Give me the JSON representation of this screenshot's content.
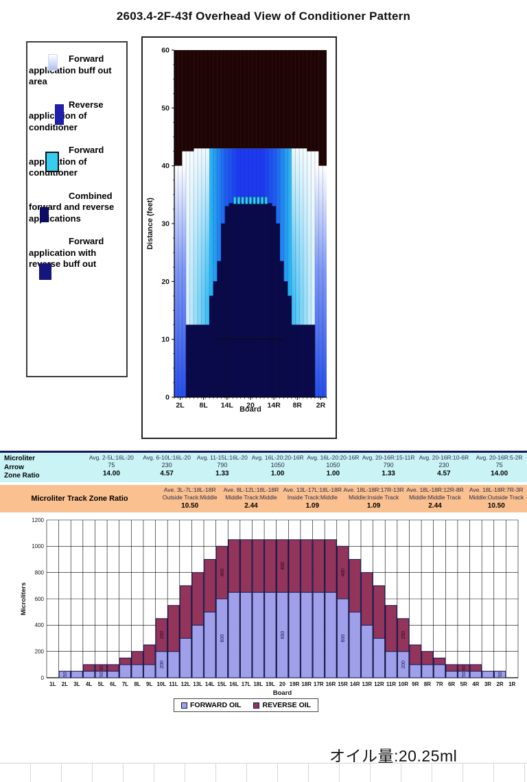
{
  "page": {
    "title": "2603.4-2F-43f Overhead View of Conditioner Pattern",
    "oil_amount": "オイル量:20.25ml"
  },
  "overhead_legend": {
    "items": [
      {
        "name": "forward-buff-out-area",
        "label": "Forward application buff out area",
        "color": "#aebdf2",
        "gradient": true
      },
      {
        "name": "reverse-application",
        "label": "Reverse application of conditioner",
        "color": "#1f1fae"
      },
      {
        "name": "forward-application",
        "label": "Forward application of conditioner",
        "color": "#36cdee"
      },
      {
        "name": "combined-applications",
        "label": "Combined forward and reverse applications",
        "color": "#0d0d66"
      },
      {
        "name": "forward-with-reverse-buff",
        "label": "Forward application with reverse buff out",
        "color": "#15157e"
      }
    ]
  },
  "tables": {
    "arrow": {
      "row_label_lines": [
        "Microliter",
        "Arrow",
        "Zone Ratio"
      ],
      "bg": "#c9f3f5",
      "columns": [
        {
          "zone": "Avg. 2-5L:16L-20",
          "value": "75",
          "ratio": "14.00"
        },
        {
          "zone": "Avg. 6-10L:16L-20",
          "value": "230",
          "ratio": "4.57"
        },
        {
          "zone": "Avg. 11-15L:16L-20",
          "value": "790",
          "ratio": "1.33"
        },
        {
          "zone": "Avg. 16L-20:20-16R",
          "value": "1050",
          "ratio": "1.00"
        },
        {
          "zone": "Avg. 16L-20:20-16R",
          "value": "1050",
          "ratio": "1.00"
        },
        {
          "zone": "Avg. 20-16R:15-11R",
          "value": "790",
          "ratio": "1.33"
        },
        {
          "zone": "Avg. 20-16R:10-6R",
          "value": "230",
          "ratio": "4.57"
        },
        {
          "zone": "Avg. 20-16R:5-2R",
          "value": "75",
          "ratio": "14.00"
        }
      ]
    },
    "track": {
      "row_label": "Microliter Track Zone Ratio",
      "bg": "#fac08f",
      "columns": [
        {
          "zone": "Ave. 3L-7L:18L-18R",
          "tracks": "Outside Track:Middle",
          "ratio": "10.50"
        },
        {
          "zone": "Ave. 8L-12L:18L-18R",
          "tracks": "Middle Track:Middle",
          "ratio": "2.44"
        },
        {
          "zone": "Ave. 13L-17L:18L-18R",
          "tracks": "Inside Track:Middle",
          "ratio": "1.09"
        },
        {
          "zone": "Ave. 18L-18R:17R-13R",
          "tracks": "Middle:Inside Track",
          "ratio": "1.09"
        },
        {
          "zone": "Ave. 18L-18R:12R-8R",
          "tracks": "Middle:Middle Track",
          "ratio": "2.44"
        },
        {
          "zone": "Ave. 18L-18R:7R-3R",
          "tracks": "Middle:Outside Track",
          "ratio": "10.50"
        }
      ]
    }
  },
  "chart_data": [
    {
      "type": "heatmap",
      "name": "overhead-conditioner-pattern",
      "xlabel": "Board",
      "ylabel": "Distance (feet)",
      "ylim": [
        0,
        60
      ],
      "y_ticks": [
        0,
        10,
        20,
        30,
        40,
        50,
        60
      ],
      "x_tick_boards": [
        2,
        8,
        14,
        20,
        26,
        32,
        38
      ],
      "x_tick_labels": [
        "2L",
        "8L",
        "14L",
        "20",
        "14R",
        "8R",
        "2R"
      ],
      "total_boards": 39,
      "colors": {
        "backend": "#1e0505",
        "backend_stripe": "#361010",
        "center_blue": "#1d3af0",
        "mid_blue": "#1e63ef",
        "cyan": "#29b5f2",
        "pale_cyan": "#8edcf8",
        "white_edge": "#ffffff",
        "combined_navy": "#0a0a4a",
        "forward_marker_cyan": "#38d2ea",
        "edge_bottom_blue": "#1b46ea"
      },
      "pattern": {
        "pattern_end_ft_center": 43,
        "pattern_end_ft_steps": [
          {
            "boards": [
              1,
              2
            ],
            "bottom_ft": 40
          },
          {
            "boards": [
              3,
              5
            ],
            "bottom_ft": 42.5
          },
          {
            "boards": [
              6,
              34
            ],
            "bottom_ft": 43
          },
          {
            "boards": [
              35,
              37
            ],
            "bottom_ft": 42.5
          },
          {
            "boards": [
              38,
              39
            ],
            "bottom_ft": 40
          }
        ],
        "combined_silhouette_steps": [
          {
            "boards": [
              4,
              9
            ],
            "top_ft": 12.5
          },
          {
            "boards": [
              10,
              10
            ],
            "top_ft": 17.5
          },
          {
            "boards": [
              11,
              11
            ],
            "top_ft": 20
          },
          {
            "boards": [
              12,
              12
            ],
            "top_ft": 23.5
          },
          {
            "boards": [
              13,
              13
            ],
            "top_ft": 30
          },
          {
            "boards": [
              14,
              14
            ],
            "top_ft": 33
          },
          {
            "boards": [
              15,
              25
            ],
            "top_ft": 33.5
          },
          {
            "boards": [
              26,
              26
            ],
            "top_ft": 33
          },
          {
            "boards": [
              27,
              27
            ],
            "top_ft": 30
          },
          {
            "boards": [
              28,
              28
            ],
            "top_ft": 23.5
          },
          {
            "boards": [
              29,
              29
            ],
            "top_ft": 20
          },
          {
            "boards": [
              30,
              30
            ],
            "top_ft": 17.5
          },
          {
            "boards": [
              31,
              36
            ],
            "top_ft": 12.5
          }
        ],
        "buff_line_ft": 10,
        "buff_line_boards": [
          12,
          28
        ],
        "forward_marker_row_ft": 34,
        "forward_marker_boards": [
          16,
          24
        ]
      }
    },
    {
      "type": "bar",
      "name": "microliters-per-board",
      "stacked": true,
      "xlabel": "Board",
      "ylabel": "Microliters",
      "ylim": [
        0,
        1200
      ],
      "ytick_step": 200,
      "categories": [
        "1L",
        "2L",
        "3L",
        "4L",
        "5L",
        "6L",
        "7L",
        "8L",
        "9L",
        "10L",
        "11L",
        "12L",
        "13L",
        "14L",
        "15L",
        "16L",
        "17L",
        "18L",
        "19L",
        "20",
        "19R",
        "18R",
        "17R",
        "16R",
        "15R",
        "14R",
        "13R",
        "12R",
        "11R",
        "10R",
        "9R",
        "8R",
        "7R",
        "6R",
        "5R",
        "4R",
        "3R",
        "2R",
        "1R"
      ],
      "series": [
        {
          "name": "FORWARD OIL",
          "color": "#a0a0ea",
          "values": [
            0,
            50,
            50,
            50,
            50,
            50,
            100,
            100,
            100,
            200,
            200,
            300,
            400,
            500,
            600,
            650,
            650,
            650,
            650,
            650,
            650,
            650,
            650,
            650,
            600,
            500,
            400,
            300,
            200,
            200,
            100,
            100,
            100,
            50,
            50,
            50,
            50,
            50,
            0
          ]
        },
        {
          "name": "REVERSE OIL",
          "color": "#93345a",
          "values": [
            0,
            0,
            0,
            50,
            50,
            50,
            50,
            100,
            150,
            250,
            350,
            400,
            400,
            400,
            400,
            400,
            400,
            400,
            400,
            400,
            400,
            400,
            400,
            400,
            400,
            400,
            400,
            400,
            350,
            250,
            150,
            100,
            50,
            50,
            50,
            50,
            0,
            0,
            0
          ]
        }
      ],
      "bar_labels_on": [
        "2L",
        "5L",
        "10L",
        "15L",
        "20",
        "15R",
        "10R",
        "5R",
        "2R"
      ],
      "bar_stroke": "#1b1b55",
      "legend_position": "bottom"
    }
  ]
}
